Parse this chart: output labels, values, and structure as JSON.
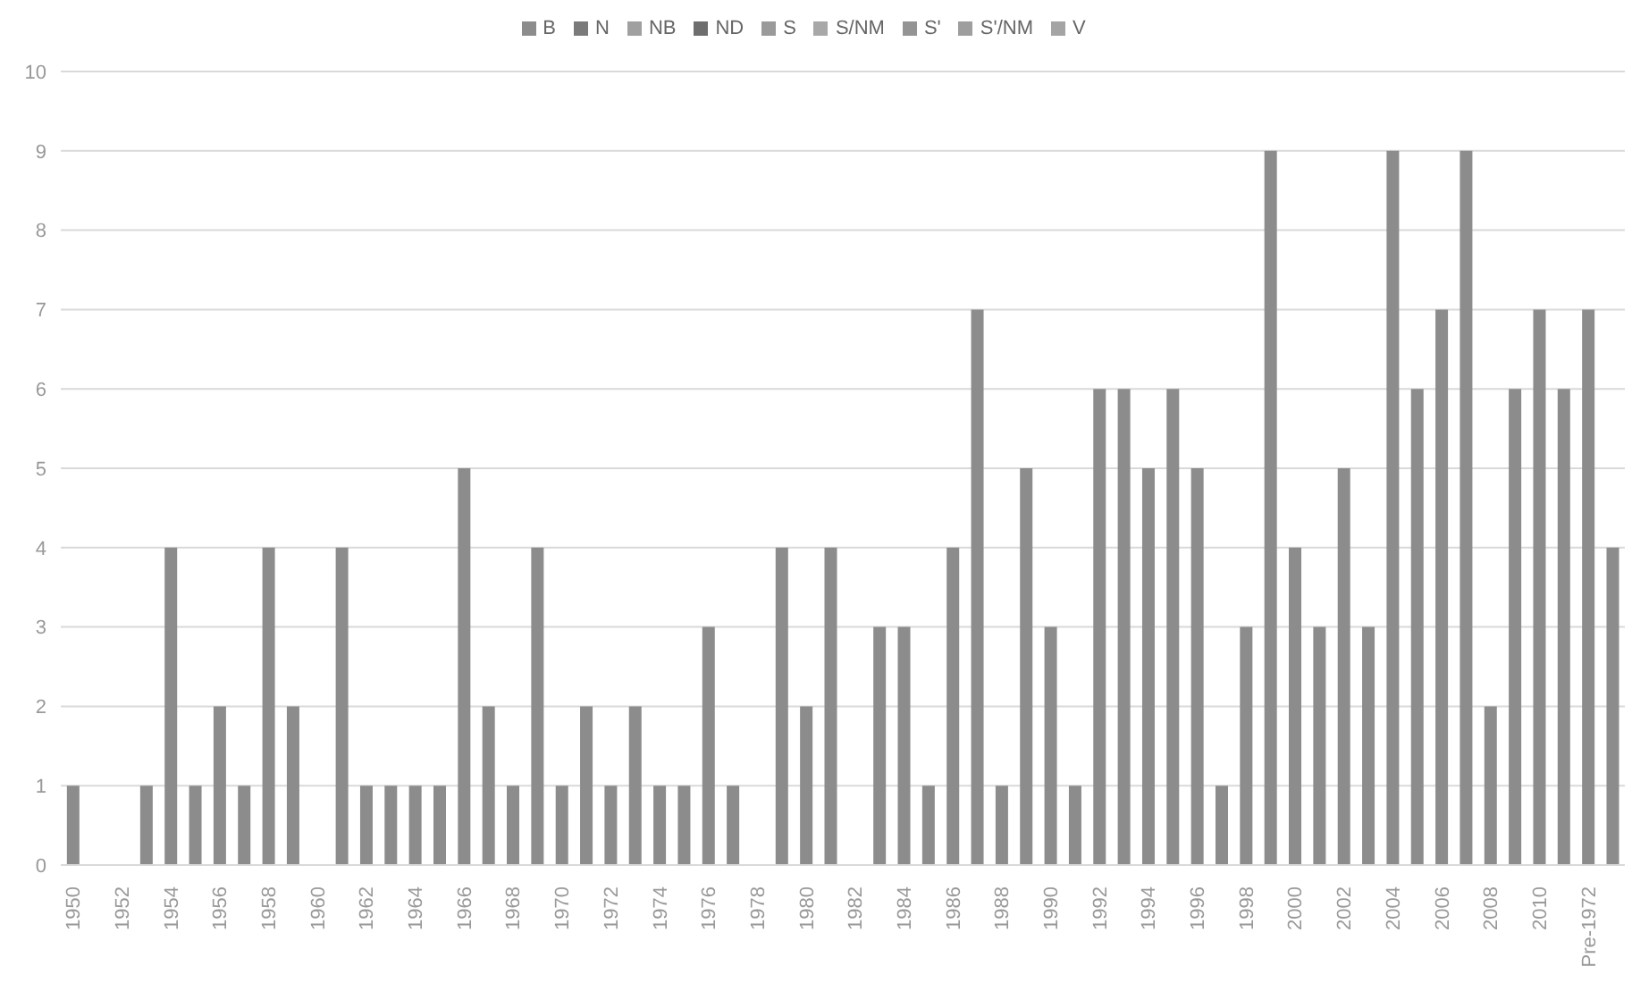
{
  "chart_data": {
    "type": "bar",
    "stacked": true,
    "legend": "top",
    "grid": "y",
    "categories": [
      "1950",
      null,
      "1952",
      null,
      "1954",
      null,
      "1956",
      null,
      "1958",
      null,
      "1960",
      null,
      "1962",
      null,
      "1964",
      null,
      "1966",
      null,
      "1968",
      null,
      "1970",
      null,
      "1972",
      null,
      "1974",
      null,
      "1976",
      null,
      "1978",
      null,
      "1980",
      null,
      "1982",
      null,
      "1984",
      null,
      "1986",
      null,
      "1988",
      null,
      "1990",
      null,
      "1992",
      null,
      "1994",
      null,
      "1996",
      null,
      "1998",
      null,
      "2000",
      null,
      "2002",
      null,
      "2004",
      null,
      "2006",
      null,
      "2008",
      null,
      "2010",
      null,
      "Pre-1972",
      null
    ],
    "ylim": [
      0,
      10
    ],
    "yticks": [
      0,
      1,
      2,
      3,
      4,
      5,
      6,
      7,
      8,
      9,
      10
    ],
    "series": [
      {
        "name": "B",
        "color": "#8c8c8c",
        "values": [
          1,
          0,
          0,
          1,
          4,
          1,
          2,
          1,
          4,
          2,
          0,
          4,
          1,
          1,
          1,
          1,
          5,
          2,
          1,
          4,
          1,
          2,
          1,
          2,
          1,
          1,
          3,
          1,
          0,
          4,
          2,
          4,
          0,
          3,
          3,
          1,
          4,
          7,
          1,
          5,
          3,
          1,
          6,
          6,
          5,
          6,
          5,
          1,
          3,
          9,
          4,
          3,
          5,
          3,
          9,
          6,
          7,
          9,
          2,
          6,
          7,
          6,
          7,
          4
        ]
      },
      {
        "name": "N",
        "color": "#7a7a7a",
        "values": [
          null,
          null,
          null,
          null,
          null,
          null,
          null,
          null,
          null,
          null,
          null,
          null,
          null,
          null,
          null,
          null,
          null,
          null,
          null,
          null,
          null,
          null,
          null,
          null,
          null,
          null,
          null,
          null,
          null,
          null,
          null,
          null,
          null,
          null,
          null,
          null,
          null,
          null,
          null,
          null,
          null,
          null,
          null,
          null,
          null,
          null,
          null,
          null,
          null,
          null,
          null,
          null,
          null,
          null,
          null,
          null,
          null,
          null,
          null,
          null,
          null,
          null,
          null,
          null
        ]
      },
      {
        "name": "NB",
        "color": "#a0a0a0",
        "values": [
          null,
          null,
          null,
          null,
          null,
          null,
          null,
          null,
          null,
          null,
          null,
          null,
          null,
          null,
          null,
          null,
          null,
          null,
          null,
          null,
          null,
          null,
          null,
          null,
          null,
          null,
          null,
          null,
          null,
          null,
          null,
          null,
          null,
          null,
          null,
          null,
          null,
          null,
          null,
          null,
          null,
          null,
          null,
          null,
          null,
          null,
          null,
          null,
          null,
          null,
          null,
          null,
          null,
          null,
          null,
          null,
          null,
          null,
          null,
          null,
          null,
          null,
          null,
          null
        ]
      },
      {
        "name": "ND",
        "color": "#6e6e6e",
        "values": [
          null,
          null,
          null,
          null,
          null,
          null,
          null,
          null,
          null,
          null,
          null,
          null,
          null,
          null,
          null,
          null,
          null,
          null,
          null,
          null,
          null,
          null,
          null,
          null,
          null,
          null,
          null,
          null,
          null,
          null,
          null,
          null,
          null,
          null,
          null,
          null,
          null,
          null,
          null,
          null,
          null,
          null,
          null,
          null,
          null,
          null,
          null,
          null,
          null,
          null,
          null,
          null,
          null,
          null,
          null,
          null,
          null,
          null,
          null,
          null,
          null,
          null,
          null,
          null
        ]
      },
      {
        "name": "S",
        "color": "#9a9a9a",
        "values": [
          null,
          null,
          null,
          null,
          null,
          null,
          null,
          null,
          null,
          null,
          null,
          null,
          null,
          null,
          null,
          null,
          null,
          null,
          null,
          null,
          null,
          null,
          null,
          null,
          null,
          null,
          null,
          null,
          null,
          null,
          null,
          null,
          null,
          null,
          null,
          null,
          null,
          null,
          null,
          null,
          null,
          null,
          null,
          null,
          null,
          null,
          null,
          null,
          null,
          null,
          null,
          null,
          null,
          null,
          null,
          null,
          null,
          null,
          null,
          null,
          null,
          null,
          null,
          null
        ]
      },
      {
        "name": "S/NM",
        "color": "#a8a8a8",
        "values": [
          null,
          null,
          null,
          null,
          null,
          null,
          null,
          null,
          null,
          null,
          null,
          null,
          null,
          null,
          null,
          null,
          null,
          null,
          null,
          null,
          null,
          null,
          null,
          null,
          null,
          null,
          null,
          null,
          null,
          null,
          null,
          null,
          null,
          null,
          null,
          null,
          null,
          null,
          null,
          null,
          null,
          null,
          null,
          null,
          null,
          null,
          null,
          null,
          null,
          null,
          null,
          null,
          null,
          null,
          null,
          null,
          null,
          null,
          null,
          null,
          null,
          null,
          null,
          null
        ]
      },
      {
        "name": "S'",
        "color": "#949494",
        "values": [
          null,
          null,
          null,
          null,
          null,
          null,
          null,
          null,
          null,
          null,
          null,
          null,
          null,
          null,
          null,
          null,
          null,
          null,
          null,
          null,
          null,
          null,
          null,
          null,
          null,
          null,
          null,
          null,
          null,
          null,
          null,
          null,
          null,
          null,
          null,
          null,
          null,
          null,
          null,
          null,
          null,
          null,
          null,
          null,
          null,
          null,
          null,
          null,
          null,
          null,
          null,
          null,
          null,
          null,
          null,
          null,
          null,
          null,
          null,
          null,
          null,
          null,
          null,
          null
        ]
      },
      {
        "name": "S'/NM",
        "color": "#9e9e9e",
        "values": [
          null,
          null,
          null,
          null,
          null,
          null,
          null,
          null,
          null,
          null,
          null,
          null,
          null,
          null,
          null,
          null,
          null,
          null,
          null,
          null,
          null,
          null,
          null,
          null,
          null,
          null,
          null,
          null,
          null,
          null,
          null,
          null,
          null,
          null,
          null,
          null,
          null,
          null,
          null,
          null,
          null,
          null,
          null,
          null,
          null,
          null,
          null,
          null,
          null,
          null,
          null,
          null,
          null,
          null,
          null,
          null,
          null,
          null,
          null,
          null,
          null,
          null,
          null,
          null
        ]
      },
      {
        "name": "V",
        "color": "#a4a4a4",
        "values": [
          null,
          null,
          null,
          null,
          null,
          null,
          null,
          null,
          null,
          null,
          null,
          null,
          null,
          null,
          null,
          null,
          null,
          null,
          null,
          null,
          null,
          null,
          null,
          null,
          null,
          null,
          null,
          null,
          null,
          null,
          null,
          null,
          null,
          null,
          null,
          null,
          null,
          null,
          null,
          null,
          null,
          null,
          null,
          null,
          null,
          null,
          null,
          null,
          null,
          null,
          null,
          null,
          null,
          null,
          null,
          null,
          null,
          null,
          null,
          null,
          null,
          null,
          null,
          null
        ]
      }
    ]
  }
}
